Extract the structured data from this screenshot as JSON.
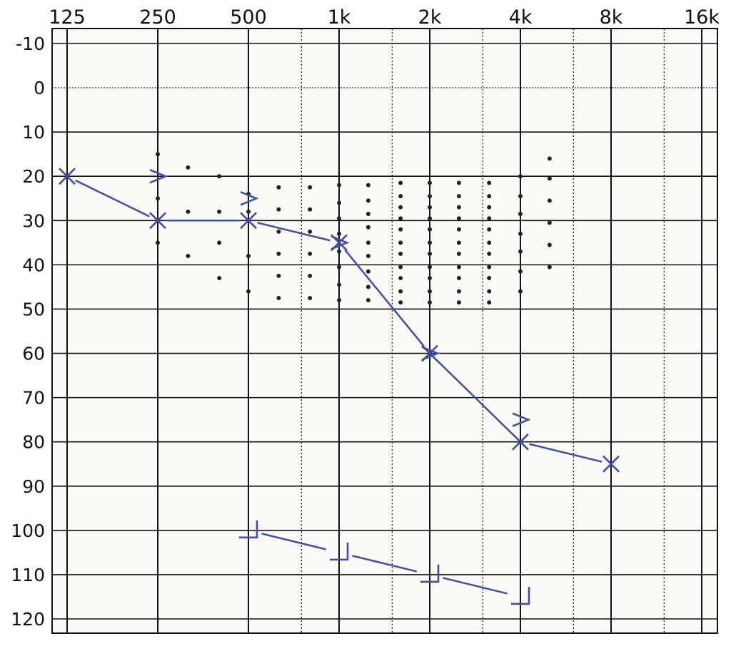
{
  "chart_data": {
    "type": "scatter",
    "chart_kind": "audiogram",
    "title": "",
    "xlabel": "",
    "ylabel": "",
    "x_scale": "log2",
    "y_inverted": true,
    "xticks": [
      {
        "value": 125,
        "label": "125"
      },
      {
        "value": 250,
        "label": "250"
      },
      {
        "value": 500,
        "label": "500"
      },
      {
        "value": 1000,
        "label": "1k"
      },
      {
        "value": 2000,
        "label": "2k"
      },
      {
        "value": 4000,
        "label": "4k"
      },
      {
        "value": 8000,
        "label": "8k"
      },
      {
        "value": 16000,
        "label": "16k"
      }
    ],
    "xlim": [
      125,
      16000
    ],
    "ylim": [
      -10,
      120
    ],
    "yticks": [
      -10,
      0,
      10,
      20,
      30,
      40,
      50,
      60,
      70,
      80,
      90,
      100,
      110,
      120
    ],
    "grid": true,
    "colors": {
      "series": "#3f4ea8",
      "grid": "#111111",
      "plot_background": "#fbfaf6",
      "speech_dots": "#222222"
    },
    "series": [
      {
        "marker": "x",
        "connected": true,
        "points": [
          {
            "x": 125,
            "y": 20
          },
          {
            "x": 250,
            "y": 30
          },
          {
            "x": 500,
            "y": 30
          },
          {
            "x": 1000,
            "y": 35
          },
          {
            "x": 2000,
            "y": 60
          },
          {
            "x": 4000,
            "y": 80
          },
          {
            "x": 8000,
            "y": 85
          }
        ]
      },
      {
        "marker": "bracket-right",
        "connected": false,
        "points": [
          {
            "x": 250,
            "y": 20
          },
          {
            "x": 500,
            "y": 25
          },
          {
            "x": 1000,
            "y": 35
          },
          {
            "x": 2000,
            "y": 60
          },
          {
            "x": 4000,
            "y": 75
          }
        ]
      },
      {
        "marker": "corner-bracket",
        "connected": true,
        "points": [
          {
            "x": 500,
            "y": 100
          },
          {
            "x": 1000,
            "y": 105
          },
          {
            "x": 2000,
            "y": 110
          },
          {
            "x": 4000,
            "y": 115
          }
        ]
      }
    ],
    "speech_banana": [
      {
        "x": 250,
        "y": [
          15,
          25,
          35
        ]
      },
      {
        "x": 315,
        "y": [
          18,
          28,
          38
        ]
      },
      {
        "x": 400,
        "y": [
          20,
          28,
          35,
          43
        ]
      },
      {
        "x": 500,
        "y": [
          24,
          28,
          38,
          46
        ]
      },
      {
        "x": 630,
        "y": [
          22.5,
          27.5,
          32.5,
          37.5,
          42.5,
          47.5
        ]
      },
      {
        "x": 800,
        "y": [
          22.5,
          27.5,
          32.5,
          37.5,
          42.5,
          47.5
        ]
      },
      {
        "x": 1000,
        "y": [
          22,
          26,
          29.5,
          33,
          37,
          40.5,
          44.5,
          48
        ]
      },
      {
        "x": 1250,
        "y": [
          22,
          25.5,
          28.5,
          31.5,
          35,
          38,
          41.5,
          45,
          48
        ]
      },
      {
        "x": 1600,
        "y": [
          21.5,
          24.5,
          27,
          29.5,
          32,
          35,
          37.5,
          40.5,
          43,
          46,
          48.5
        ]
      },
      {
        "x": 2000,
        "y": [
          21.5,
          24.5,
          27,
          29.5,
          32,
          35,
          37.5,
          40.5,
          43,
          46,
          48.5
        ]
      },
      {
        "x": 2500,
        "y": [
          21.5,
          24.5,
          27,
          29.5,
          32,
          35,
          37.5,
          40.5,
          43,
          46,
          48.5
        ]
      },
      {
        "x": 3150,
        "y": [
          21.5,
          24.5,
          27,
          29.5,
          32,
          35,
          37.5,
          40.5,
          43,
          46,
          48.5
        ]
      },
      {
        "x": 4000,
        "y": [
          20,
          24.5,
          28.5,
          33,
          37,
          41.5,
          46
        ]
      },
      {
        "x": 5000,
        "y": [
          16,
          20.5,
          25.5,
          30.5,
          35.5,
          40.5
        ]
      }
    ]
  }
}
